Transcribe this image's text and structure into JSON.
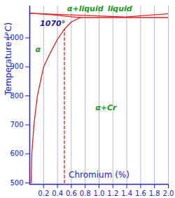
{
  "chart_data": {
    "type": "line",
    "xlabel": "Chromium (%)",
    "ylabel": "Temperature (°C)",
    "xlim": [
      0,
      2.0
    ],
    "ylim": [
      495,
      1110
    ],
    "xticks": [
      0.2,
      0.4,
      0.6,
      0.8,
      {
        "value": 1,
        "label": "1.0"
      },
      1.2,
      1.4,
      1.6,
      1.8,
      {
        "value": 2,
        "label": "2.0"
      }
    ],
    "yticks": [
      500,
      600,
      700,
      800,
      900,
      1000
    ],
    "grid": true,
    "series": [
      {
        "color": "#e02020",
        "line_style": "solid",
        "x": [
          0.02,
          0.03,
          0.06,
          0.11,
          0.2,
          0.3,
          0.4,
          0.5,
          0.6,
          0.73
        ],
        "values": [
          500,
          600,
          700,
          800,
          900,
          950,
          995,
          1030,
          1055,
          1070
        ]
      },
      {
        "color": "#e02020",
        "line_style": "solid",
        "x": [
          0,
          0.3,
          0.6,
          0.73
        ],
        "values": [
          1085,
          1080,
          1073,
          1070
        ]
      },
      {
        "color": "#e02020",
        "line_style": "solid",
        "x": [
          0,
          0.7,
          1.38,
          2.0
        ],
        "values": [
          1085,
          1078,
          1072,
          1083
        ]
      },
      {
        "color": "#e02020",
        "line_style": "solid",
        "x": [
          0.73,
          2.0
        ],
        "values": [
          1070,
          1070
        ]
      },
      {
        "color": "#e02020",
        "line_style": "dashed",
        "x": [
          0.5,
          0.5
        ],
        "values": [
          500,
          1030
        ]
      }
    ],
    "annotations": [
      {
        "text": "α",
        "x": 0.12,
        "y": 960,
        "color": "#1a9a1a"
      },
      {
        "text": "α+liquid",
        "x": 0.8,
        "y": 1100,
        "color": "#1a9a1a"
      },
      {
        "text": "liquid",
        "x": 1.3,
        "y": 1100,
        "color": "#1a9a1a"
      },
      {
        "text": "1070°",
        "x": 0.33,
        "y": 1050,
        "color": "#20209a"
      },
      {
        "text": "α+Cr",
        "x": 1.1,
        "y": 760,
        "color": "#1a9a1a"
      }
    ]
  }
}
